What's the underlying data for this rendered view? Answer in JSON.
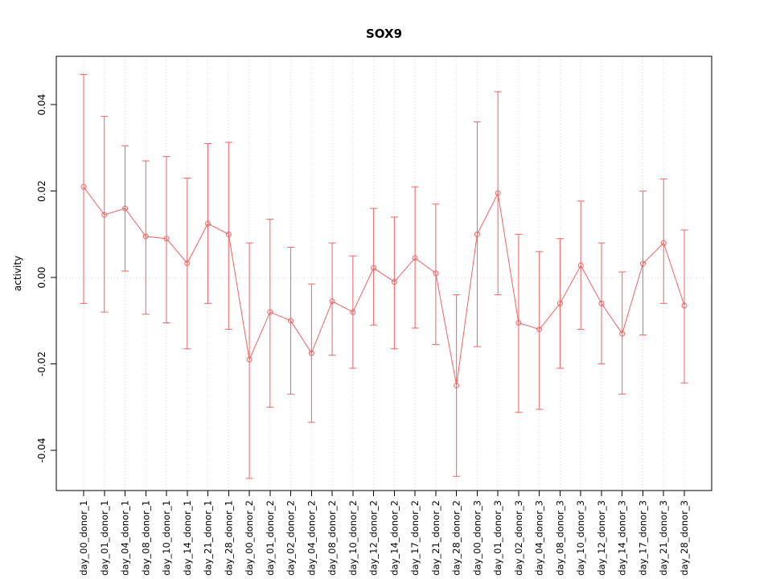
{
  "title": "SOX9",
  "colors": {
    "series": "#EE6363",
    "grid": "#d8d8d8",
    "zero_line": "#d9c6c6",
    "box": "#000000",
    "text": "#000000",
    "background": "#ffffff"
  },
  "chart_data": {
    "type": "line",
    "title": "SOX9",
    "xlabel": "",
    "ylabel": "activity",
    "ylim": [
      -0.0493,
      0.0512
    ],
    "yticks": [
      -0.04,
      -0.02,
      0.0,
      0.02,
      0.04
    ],
    "grid": "vertical-dotted",
    "zero_reference_line": 0,
    "legend": "none",
    "marker": "open-circle",
    "error_bars": true,
    "categories": [
      "day_00_donor_1",
      "day_01_donor_1",
      "day_04_donor_1",
      "day_08_donor_1",
      "day_10_donor_1",
      "day_14_donor_1",
      "day_21_donor_1",
      "day_28_donor_1",
      "day_00_donor_2",
      "day_01_donor_2",
      "day_02_donor_2",
      "day_04_donor_2",
      "day_08_donor_2",
      "day_10_donor_2",
      "day_12_donor_2",
      "day_14_donor_2",
      "day_17_donor_2",
      "day_21_donor_2",
      "day_28_donor_2",
      "day_00_donor_3",
      "day_01_donor_3",
      "day_02_donor_3",
      "day_04_donor_3",
      "day_08_donor_3",
      "day_10_donor_3",
      "day_12_donor_3",
      "day_14_donor_3",
      "day_17_donor_3",
      "day_21_donor_3",
      "day_28_donor_3"
    ],
    "series": [
      {
        "name": "activity",
        "values": [
          0.021,
          0.0145,
          0.016,
          0.0095,
          0.009,
          0.0033,
          0.0125,
          0.01,
          -0.019,
          -0.008,
          -0.01,
          -0.0175,
          -0.0055,
          -0.008,
          0.0022,
          -0.001,
          0.0045,
          0.001,
          -0.025,
          0.01,
          0.0195,
          -0.0105,
          -0.012,
          -0.006,
          0.0028,
          -0.006,
          -0.013,
          0.0032,
          0.008,
          -0.0065
        ],
        "ci_upper": [
          0.047,
          0.0373,
          0.0305,
          0.027,
          0.028,
          0.023,
          0.031,
          0.0313,
          0.008,
          0.0135,
          0.007,
          -0.0015,
          0.008,
          0.005,
          0.016,
          0.014,
          0.021,
          0.017,
          -0.004,
          0.036,
          0.043,
          0.01,
          0.006,
          0.009,
          0.0177,
          0.008,
          0.0013,
          0.02,
          0.0228,
          0.011
        ],
        "ci_lower": [
          -0.006,
          -0.008,
          0.0015,
          -0.0085,
          -0.0105,
          -0.0165,
          -0.006,
          -0.012,
          -0.0465,
          -0.03,
          -0.027,
          -0.0335,
          -0.018,
          -0.021,
          -0.011,
          -0.0165,
          -0.0117,
          -0.0155,
          -0.046,
          -0.016,
          -0.004,
          -0.0312,
          -0.0305,
          -0.021,
          -0.012,
          -0.02,
          -0.027,
          -0.0133,
          -0.006,
          -0.0244
        ]
      }
    ]
  }
}
